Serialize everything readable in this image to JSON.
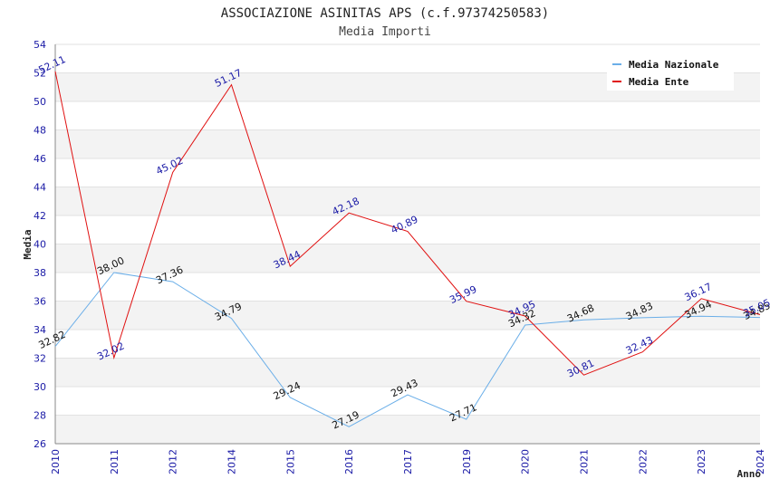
{
  "chart_data": {
    "type": "line",
    "title": "ASSOCIAZIONE ASINITAS APS (c.f.97374250583)",
    "subtitle": "Media Importi",
    "xlabel": "Anno",
    "ylabel": "Media",
    "ylim": [
      26,
      54
    ],
    "yticks": [
      26,
      28,
      30,
      32,
      34,
      36,
      38,
      40,
      42,
      44,
      46,
      48,
      50,
      52,
      54
    ],
    "categories": [
      "2010",
      "2011",
      "2012",
      "2014",
      "2015",
      "2016",
      "2017",
      "2019",
      "2020",
      "2021",
      "2022",
      "2023",
      "2024"
    ],
    "grid": "horizontal bands",
    "legend_position": "top-right",
    "series": [
      {
        "name": "Media Nazionale",
        "color": "#6aaee8",
        "values": [
          32.82,
          38.0,
          37.36,
          34.79,
          29.24,
          27.19,
          29.43,
          27.71,
          34.32,
          34.68,
          34.83,
          34.94,
          34.85
        ],
        "labels": [
          "32.82",
          "38.00",
          "37.36",
          "34.79",
          "29.24",
          "27.19",
          "29.43",
          "27.71",
          "34.32",
          "34.68",
          "34.83",
          "34.94",
          "34.85"
        ]
      },
      {
        "name": "Media Ente",
        "color": "#e01010",
        "values": [
          52.11,
          32.02,
          45.02,
          51.17,
          38.44,
          42.18,
          40.89,
          35.99,
          34.95,
          30.81,
          32.43,
          36.17,
          35.05
        ],
        "labels": [
          "52.11",
          "32.02",
          "45.02",
          "51.17",
          "38.44",
          "42.18",
          "40.89",
          "35.99",
          "34.95",
          "30.81",
          "32.43",
          "36.17",
          "35.05"
        ]
      }
    ]
  }
}
